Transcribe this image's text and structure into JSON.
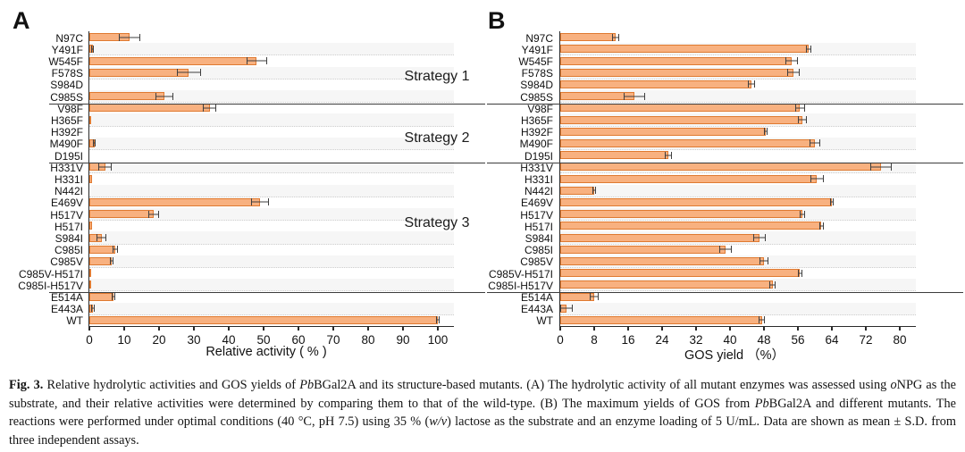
{
  "colors": {
    "bar_fill": "#F8B180",
    "bar_border": "#DF7A31",
    "error_bar": "#3f3f3f",
    "divider": "#3c3c3c",
    "axis": "#2a2a2a"
  },
  "chart_data": [
    {
      "type": "bar",
      "orientation": "horizontal",
      "letter": "A",
      "xlabel": "Relative activity ( % )",
      "ylabel": "",
      "xlim": [
        0,
        100
      ],
      "ticks": [
        0,
        10,
        20,
        30,
        40,
        50,
        60,
        70,
        80,
        90,
        100
      ],
      "grid": "row-stripes",
      "categories": [
        "N97C",
        "Y491F",
        "W545F",
        "F578S",
        "S984D",
        "C985S",
        "V98F",
        "H365F",
        "H392F",
        "M490F",
        "D195I",
        "H331V",
        "H331I",
        "N442I",
        "E469V",
        "H517V",
        "H517I",
        "S984I",
        "C985I",
        "C985V",
        "C985V-H517I",
        "C985I-H517V",
        "E514A",
        "E443A",
        "WT"
      ],
      "values": [
        11.5,
        1,
        48,
        28.5,
        0,
        21.5,
        34.5,
        0.5,
        0,
        1.5,
        0,
        4.5,
        0.8,
        0,
        49,
        18.5,
        0.8,
        3.5,
        7.5,
        6.5,
        0.3,
        0.5,
        7,
        1,
        100
      ],
      "errors": [
        3,
        0.4,
        3,
        3.5,
        0,
        2.5,
        2,
        0,
        0,
        0.4,
        0,
        2,
        0,
        0,
        2.5,
        1.5,
        0,
        1.5,
        0.8,
        0.5,
        0,
        0,
        0.5,
        0.5,
        0.5
      ],
      "group_dividers_after": [
        5,
        10,
        21
      ],
      "annotations": [
        "Strategy 1",
        "Strategy 2",
        "Strategy 3"
      ]
    },
    {
      "type": "bar",
      "orientation": "horizontal",
      "letter": "B",
      "xlabel": "GOS yield （%）",
      "ylabel": "",
      "xlim": [
        0,
        80
      ],
      "ticks": [
        0,
        8,
        16,
        24,
        32,
        40,
        48,
        56,
        64,
        72,
        80
      ],
      "grid": "row-stripes",
      "categories": [
        "N97C",
        "Y491F",
        "W545F",
        "F578S",
        "S984D",
        "C985S",
        "V98F",
        "H365F",
        "H392F",
        "M490F",
        "D195I",
        "H331V",
        "H331I",
        "N442I",
        "E469V",
        "H517V",
        "H517I",
        "S984I",
        "C985I",
        "C985V",
        "C985V-H517I",
        "C985I-H517V",
        "E514A",
        "E443A",
        "WT"
      ],
      "values": [
        13,
        58.5,
        54.5,
        55,
        45,
        17.5,
        56.5,
        57,
        48.5,
        60,
        25.5,
        75.5,
        60.5,
        8,
        64,
        57,
        61.5,
        47,
        39,
        48,
        56.5,
        50,
        8,
        1.5,
        47.5
      ],
      "errors": [
        0.8,
        0.6,
        1.5,
        1.5,
        0.8,
        2.5,
        1.2,
        1,
        0.4,
        1.2,
        0.8,
        2.5,
        1.5,
        0.4,
        0.5,
        0.6,
        0.5,
        1.5,
        1.5,
        1,
        0.5,
        0.8,
        1,
        1.5,
        0.8
      ],
      "group_dividers_after": [
        5,
        10,
        21
      ],
      "annotations": []
    }
  ],
  "caption": {
    "parts": [
      "Fig. 3.",
      " Relative hydrolytic activities and GOS yields of ",
      "Pb",
      "BGal2A and its structure-based mutants. (A) The hydrolytic activity of all mutant enzymes was assessed using ",
      "o",
      "NPG as the substrate, and their relative activities were determined by comparing them to that of the wild-type. (B) The maximum yields of GOS from ",
      "Pb",
      "BGal2A and different mutants. The reactions were performed under optimal conditions (40 °C, pH 7.5) using 35 % (",
      "w/v",
      ") lactose as the substrate and an enzyme loading of 5 U/mL. Data are shown as mean ± S.D. from three independent assays."
    ]
  }
}
